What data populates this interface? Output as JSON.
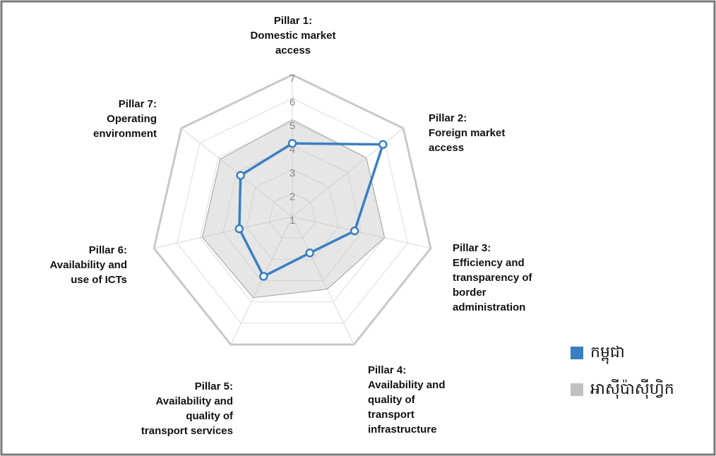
{
  "chart_data": {
    "type": "radar",
    "labels": [
      [
        "Pillar 1:",
        "Domestic market",
        "access"
      ],
      [
        "Pillar 2:",
        "Foreign market",
        "access"
      ],
      [
        "Pillar 3:",
        "Efficiency and",
        "transparency of",
        "border",
        "administration"
      ],
      [
        "Pillar 4:",
        "Availability and",
        "quality of",
        "transport",
        "infrastructure"
      ],
      [
        "Pillar 5:",
        "Availability and",
        "quality of",
        "transport services"
      ],
      [
        "Pillar 6:",
        "Availability and",
        "use of ICTs"
      ],
      [
        "Pillar 7:",
        "Operating",
        "environment"
      ]
    ],
    "series": [
      {
        "name": "អាស៊ីប៉ាស៊ីហ្វិក",
        "color": "#c0c0c0",
        "values": [
          5.1,
          5.0,
          5.0,
          4.4,
          4.8,
          4.9,
          4.9
        ]
      },
      {
        "name": "កម្ពុជា",
        "color": "#3a7fc1",
        "values": [
          4.1,
          5.9,
          3.7,
          2.7,
          3.8,
          3.3,
          3.8
        ]
      }
    ],
    "ylim": [
      1,
      7
    ],
    "yticks": [
      1,
      2,
      3,
      4,
      5,
      6,
      7
    ],
    "grid": true,
    "legend": "right"
  }
}
